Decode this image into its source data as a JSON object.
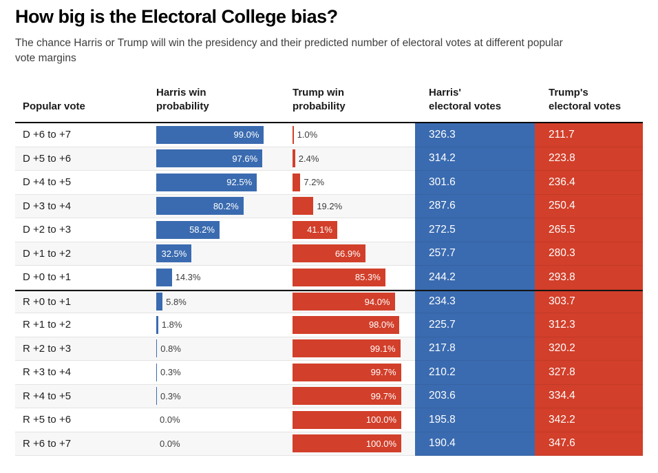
{
  "title": "How big is the Electoral College bias?",
  "subtitle": "The chance Harris or Trump will win the presidency and their predicted number of electoral votes at different popular\nvote margins",
  "table": {
    "headers": {
      "popular_vote": "Popular vote",
      "harris_prob": "Harris win\nprobability",
      "trump_prob": "Trump win\nprobability",
      "harris_ev": "Harris'\nelectoral votes",
      "trump_ev": "Trump's\nelectoral votes"
    }
  },
  "colors": {
    "harris_blue": "#3a6bb0",
    "trump_red": "#d23f2a",
    "stripe_gray": "#f7f7f7",
    "divider_gray": "#e3e3e3",
    "rule_black": "#000000"
  },
  "chart_data": {
    "type": "bar",
    "title": "How big is the Electoral College bias?",
    "subtitle": "The chance Harris or Trump will win the presidency and their predicted number of electoral votes at different popular vote margins",
    "columns": [
      "Popular vote",
      "Harris win probability",
      "Trump win probability",
      "Harris' electoral votes",
      "Trump's electoral votes"
    ],
    "bar_axis_pct": [
      0,
      100
    ],
    "legend_position": "none",
    "grid": false,
    "rows": [
      {
        "popular_vote": "D +6 to +7",
        "harris_prob": 99.0,
        "trump_prob": 1.0,
        "harris_ev": 326.3,
        "trump_ev": 211.7
      },
      {
        "popular_vote": "D +5 to +6",
        "harris_prob": 97.6,
        "trump_prob": 2.4,
        "harris_ev": 314.2,
        "trump_ev": 223.8
      },
      {
        "popular_vote": "D +4 to +5",
        "harris_prob": 92.5,
        "trump_prob": 7.2,
        "harris_ev": 301.6,
        "trump_ev": 236.4
      },
      {
        "popular_vote": "D +3 to +4",
        "harris_prob": 80.2,
        "trump_prob": 19.2,
        "harris_ev": 287.6,
        "trump_ev": 250.4
      },
      {
        "popular_vote": "D +2 to +3",
        "harris_prob": 58.2,
        "trump_prob": 41.1,
        "harris_ev": 272.5,
        "trump_ev": 265.5
      },
      {
        "popular_vote": "D +1 to +2",
        "harris_prob": 32.5,
        "trump_prob": 66.9,
        "harris_ev": 257.7,
        "trump_ev": 280.3
      },
      {
        "popular_vote": "D +0 to +1",
        "harris_prob": 14.3,
        "trump_prob": 85.3,
        "harris_ev": 244.2,
        "trump_ev": 293.8
      },
      {
        "popular_vote": "R +0 to +1",
        "harris_prob": 5.8,
        "trump_prob": 94.0,
        "harris_ev": 234.3,
        "trump_ev": 303.7
      },
      {
        "popular_vote": "R +1 to +2",
        "harris_prob": 1.8,
        "trump_prob": 98.0,
        "harris_ev": 225.7,
        "trump_ev": 312.3
      },
      {
        "popular_vote": "R +2 to +3",
        "harris_prob": 0.8,
        "trump_prob": 99.1,
        "harris_ev": 217.8,
        "trump_ev": 320.2
      },
      {
        "popular_vote": "R +3 to +4",
        "harris_prob": 0.3,
        "trump_prob": 99.7,
        "harris_ev": 210.2,
        "trump_ev": 327.8
      },
      {
        "popular_vote": "R +4 to +5",
        "harris_prob": 0.3,
        "trump_prob": 99.7,
        "harris_ev": 203.6,
        "trump_ev": 334.4
      },
      {
        "popular_vote": "R +5 to +6",
        "harris_prob": 0.0,
        "trump_prob": 100.0,
        "harris_ev": 195.8,
        "trump_ev": 342.2
      },
      {
        "popular_vote": "R +6 to +7",
        "harris_prob": 0.0,
        "trump_prob": 100.0,
        "harris_ev": 190.4,
        "trump_ev": 347.6
      }
    ]
  }
}
